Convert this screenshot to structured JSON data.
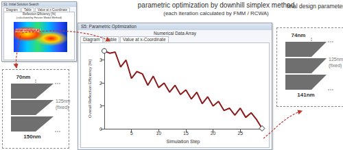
{
  "title": "parametric optimization by downhill simplex method",
  "subtitle": "(each iteration calculated by FMM / RCWA)",
  "final_label": "final design parameters",
  "initial_window": {
    "title": "S1: Initial Solution Search",
    "tabs": [
      "Diagram",
      "Table",
      "Value at x-Coordinate"
    ],
    "heading": "Reflection Efficiency [%]",
    "subheading": "(calculated by Fourier Modal Method)",
    "marker_label": "Initial solution #1"
  },
  "initial_design": {
    "top": "70nm",
    "bottom": "150nm",
    "height": "125nm",
    "height_note": "(fixed)"
  },
  "final_design": {
    "top": "74nm",
    "bottom": "141nm",
    "height": "125nm",
    "height_note": "(fixed)"
  },
  "main_window": {
    "title": "S5: Parametric Optimization",
    "header": "Numerical Data Array",
    "tabs": [
      "Diagram",
      "Table",
      "Value at x-Coordinate"
    ]
  },
  "chart_data": {
    "type": "line",
    "x_label": "Simulation Step",
    "y_label": "Overall Reflection Efficiency [%]",
    "x": [
      0,
      1,
      2,
      3,
      4,
      5,
      6,
      7,
      8,
      9,
      10,
      11,
      12,
      13,
      14,
      15,
      16,
      17,
      18,
      19,
      20,
      21,
      22,
      23,
      24,
      25,
      26,
      27,
      28,
      29
    ],
    "values": [
      3.4,
      3.3,
      3.35,
      2.7,
      3.0,
      2.2,
      2.5,
      2.4,
      1.9,
      2.3,
      1.8,
      2.0,
      1.6,
      1.9,
      1.5,
      1.7,
      1.3,
      1.6,
      1.1,
      1.4,
      1.0,
      1.2,
      0.8,
      0.9,
      0.6,
      0.9,
      0.5,
      0.7,
      0.4,
      0.02
    ],
    "color": "#8b1a1a",
    "xlim": [
      0,
      29
    ],
    "xticks": [
      5,
      10,
      15,
      20,
      25
    ],
    "ylim": [
      0,
      3.5
    ],
    "yticks": [
      0,
      1,
      2,
      3
    ],
    "grid": false
  }
}
